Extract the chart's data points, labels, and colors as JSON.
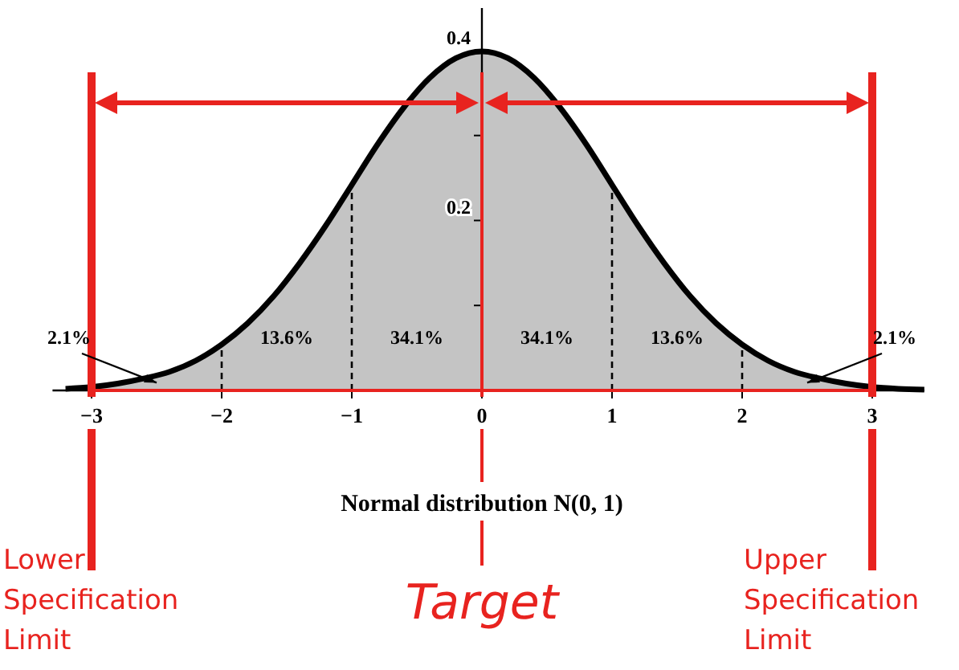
{
  "chart_data": {
    "type": "area",
    "xlabel": "Normal distribution N(0, 1)",
    "x": [
      -3.2,
      -3.0,
      -2.8,
      -2.6,
      -2.4,
      -2.2,
      -2.0,
      -1.8,
      -1.6,
      -1.4,
      -1.2,
      -1.0,
      -0.8,
      -0.6,
      -0.4,
      -0.2,
      0,
      0.2,
      0.4,
      0.6,
      0.8,
      1.0,
      1.2,
      1.4,
      1.6,
      1.8,
      2.0,
      2.2,
      2.4,
      2.6,
      2.8,
      3.0,
      3.2,
      3.4
    ],
    "series": [
      {
        "color": "#c4c4c4",
        "values": [
          0.002,
          0.004,
          0.008,
          0.014,
          0.022,
          0.035,
          0.054,
          0.079,
          0.111,
          0.15,
          0.194,
          0.242,
          0.29,
          0.333,
          0.368,
          0.391,
          0.399,
          0.391,
          0.368,
          0.333,
          0.29,
          0.242,
          0.194,
          0.15,
          0.111,
          0.079,
          0.054,
          0.035,
          0.022,
          0.014,
          0.008,
          0.004,
          0.002,
          0.001
        ]
      }
    ],
    "xlim": [
      -3.3,
      3.4
    ],
    "ylim": [
      0,
      0.45
    ],
    "xticks": [
      {
        "value": -3,
        "label": "−3"
      },
      {
        "value": -2,
        "label": "−2"
      },
      {
        "value": -1,
        "label": "−1"
      },
      0,
      1,
      2,
      3
    ],
    "yticks": [
      {
        "value": 0.1,
        "label": null
      },
      0.2,
      {
        "value": 0.3,
        "label": null
      },
      0.4
    ],
    "ref_lines": [
      {
        "axis": "x",
        "value": -2,
        "color": "#000000",
        "line_style": "dashed"
      },
      {
        "axis": "x",
        "value": -1,
        "color": "#000000",
        "line_style": "dashed"
      },
      {
        "axis": "x",
        "value": 1,
        "color": "#000000",
        "line_style": "dashed"
      },
      {
        "axis": "x",
        "value": 2,
        "color": "#000000",
        "line_style": "dashed"
      },
      {
        "axis": "y",
        "value": 0,
        "color": "#e8231f"
      },
      {
        "axis": "x",
        "value": -3,
        "label": "Lower Specification Limit",
        "color": "#e8231f"
      },
      {
        "axis": "x",
        "value": 0,
        "label": "Target",
        "color": "#e8231f"
      },
      {
        "axis": "x",
        "value": 3,
        "label": "Upper Specification Limit",
        "color": "#e8231f"
      }
    ],
    "annotations": [
      {
        "text": "2.1%",
        "x": -2.5,
        "y": 0.009
      },
      "13.6%",
      "34.1%",
      "34.1%",
      "13.6%",
      {
        "text": "2.1%",
        "x": 2.5,
        "y": 0.009
      }
    ],
    "grid": false
  }
}
